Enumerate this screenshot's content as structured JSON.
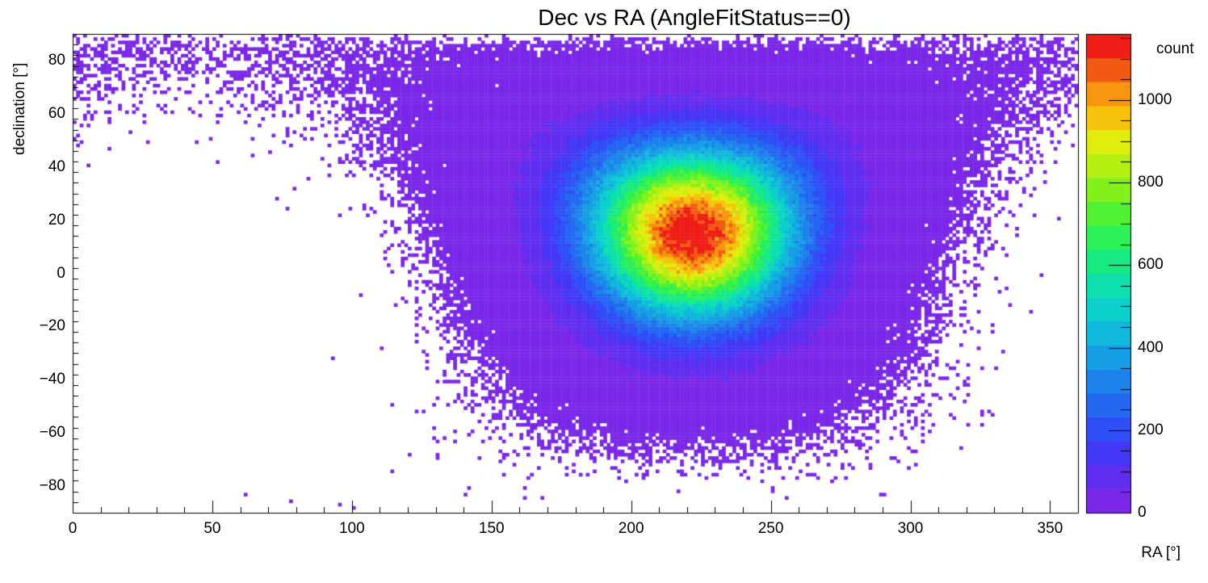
{
  "chart_data": {
    "type": "heatmap",
    "title": "Dec vs RA (AngleFitStatus==0)",
    "xlabel": "RA [°]",
    "ylabel": "declination [°]",
    "zlabel": "count",
    "x_range": [
      0,
      360
    ],
    "y_range": [
      -90,
      90
    ],
    "z_range": [
      0,
      1160
    ],
    "x_major_ticks": [
      0,
      50,
      100,
      150,
      200,
      250,
      300,
      350
    ],
    "x_tick_labels": [
      "0",
      "50",
      "100",
      "150",
      "200",
      "250",
      "300",
      "350"
    ],
    "x_minor_step": 10,
    "y_major_ticks": [
      -80,
      -60,
      -40,
      -20,
      0,
      20,
      40,
      60,
      80
    ],
    "y_tick_labels": [
      "−80",
      "−60",
      "−40",
      "−20",
      "0",
      "20",
      "40",
      "60",
      "80"
    ],
    "y_minor_step": 4,
    "z_major_ticks": [
      0,
      200,
      400,
      600,
      800,
      1000
    ],
    "z_tick_labels": [
      "0",
      "200",
      "400",
      "600",
      "800",
      "1000"
    ],
    "z_minor_step": 50,
    "n_contours": 20,
    "grid": false,
    "colorbar_position": "right",
    "palette": [
      "#7a27e8",
      "#5f2ef0",
      "#4338f6",
      "#2f4ef6",
      "#2468f2",
      "#1d83ec",
      "#169ee4",
      "#10b8dc",
      "#0bd0cc",
      "#0de0ac",
      "#17ea83",
      "#2cf057",
      "#52f232",
      "#83f21c",
      "#b4f011",
      "#e0ec0d",
      "#f8c30c",
      "#f79410",
      "#f25a14",
      "#ee1d16"
    ],
    "bins": {
      "n_ra": 288,
      "n_dec": 144
    },
    "density_model": {
      "kind": "spherical-gaussian-poisson",
      "center_ra_deg": 222,
      "center_dec_deg": 18,
      "sigma_deg": 24,
      "peak_count": 1160,
      "solid_angle_weight": true,
      "seed": 7
    }
  }
}
